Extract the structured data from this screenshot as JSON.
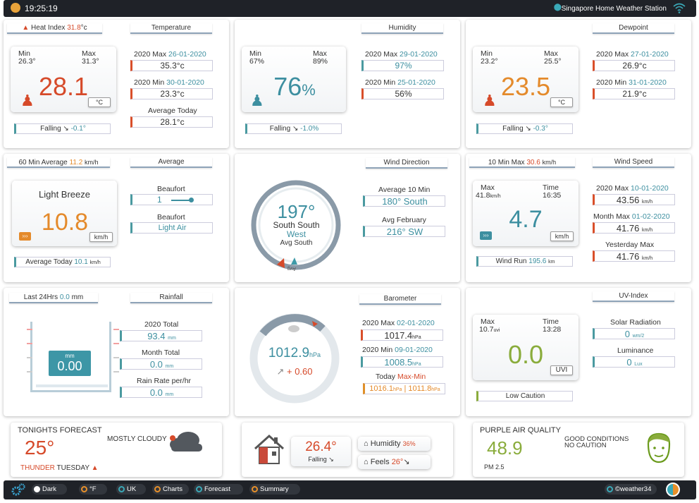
{
  "header": {
    "time": "19:25:19",
    "station": "Singapore Home Weather Station"
  },
  "temperature": {
    "heat_index_label": "Heat Index",
    "heat_index_value": "31.8",
    "heat_index_unit": "°c",
    "tab": "Temperature",
    "min_label": "Min",
    "min_value": "26.3°",
    "max_label": "Max",
    "max_value": "31.3°",
    "current": "28.1",
    "unit": "°C",
    "trend_label": "Falling",
    "trend_value": "-0.1°",
    "year_max_label": "2020 Max",
    "year_max_date": "26-01-2020",
    "year_max_value": "35.3°c",
    "year_min_label": "2020 Min",
    "year_min_date": "30-01-2020",
    "year_min_value": "23.3°c",
    "avg_today_label": "Average Today",
    "avg_today_value": "28.1°c"
  },
  "humidity": {
    "tab": "Humidity",
    "min_label": "Min",
    "min_value": "67%",
    "max_label": "Max",
    "max_value": "89%",
    "current": "76",
    "pct": "%",
    "trend_label": "Falling",
    "trend_value": "-1.0%",
    "year_max_label": "2020 Max",
    "year_max_date": "29-01-2020",
    "year_max_value": "97%",
    "year_min_label": "2020 Min",
    "year_min_date": "25-01-2020",
    "year_min_value": "56%"
  },
  "dewpoint": {
    "tab": "Dewpoint",
    "min_label": "Min",
    "min_value": "23.2°",
    "max_label": "Max",
    "max_value": "25.5°",
    "current": "23.5",
    "unit": "°C",
    "trend_label": "Falling",
    "trend_value": "-0.3°",
    "year_max_label": "2020 Max",
    "year_max_date": "27-01-2020",
    "year_max_value": "26.9°c",
    "year_min_label": "2020 Min",
    "year_min_date": "31-01-2020",
    "year_min_value": "21.9°c"
  },
  "wind_avg": {
    "tab_label": "60 Min Average",
    "tab_value": "11.2",
    "tab_unit": "km/h",
    "tab": "Average",
    "desc": "Light Breeze",
    "current": "10.8",
    "unit": "km/h",
    "beaufort_label": "Beaufort",
    "beaufort_value": "1",
    "beaufort2_label": "Beaufort",
    "beaufort2_value": "Light Air",
    "avg_today_label": "Average Today",
    "avg_today_value": "10.1",
    "avg_today_unit": "km/h"
  },
  "wind_dir": {
    "tab": "Wind Direction",
    "degrees": "197°",
    "name": "South South",
    "name2": "West",
    "avg_label": "Avg South",
    "avg_marker": "Avg",
    "avg10_label": "Average 10 Min",
    "avg10_value": "180°  South",
    "avg_month_label": "Avg February",
    "avg_month_value": "216°  SW"
  },
  "wind_speed": {
    "tab_label": "10 Min Max",
    "tab_value": "30.6",
    "tab_unit": "km/h",
    "tab": "Wind Speed",
    "max_label": "Max",
    "max_value": "41.8",
    "max_unit": "km/h",
    "time_label": "Time",
    "time_value": "16:35",
    "current": "4.7",
    "unit": "km/h",
    "run_label": "Wind Run",
    "run_value": "195.6",
    "run_unit": "km",
    "year_max_label": "2020 Max",
    "year_max_date": "10-01-2020",
    "year_max_value": "43.56",
    "month_max_label": "Month Max",
    "month_max_date": "01-02-2020",
    "month_max_value": "41.76",
    "yesterday_label": "Yesterday Max",
    "yesterday_value": "41.76",
    "speed_unit": "km/h"
  },
  "rain": {
    "tab_label": "Last 24Hrs",
    "tab_value": "0.0",
    "tab_unit": "mm",
    "tab": "Rainfall",
    "gauge_unit": "mm",
    "gauge_value": "0.00",
    "year_label": "2020 Total",
    "year_value": "93.4",
    "month_label": "Month Total",
    "month_value": "0.0",
    "rate_label": "Rain Rate per/hr",
    "rate_value": "0.0",
    "unit": "mm"
  },
  "barometer": {
    "tab": "Barometer",
    "value": "1012.9",
    "unit": "hPa",
    "trend": "+ 0.60",
    "year_max_label": "2020 Max",
    "year_max_date": "02-01-2020",
    "year_max_value": "1017.4",
    "year_min_label": "2020 Min",
    "year_min_date": "09-01-2020",
    "year_min_value": "1008.5",
    "today_label": "Today",
    "today_maxmin": "Max-Min",
    "today_max": "1016.1",
    "today_min": "1011.8"
  },
  "uv": {
    "tab": "UV-Index",
    "max_label": "Max",
    "max_value": "10.7",
    "max_unit": "uvi",
    "time_label": "Time",
    "time_value": "13:28",
    "current": "0.0",
    "unit": "UVI",
    "caution": "Low Caution",
    "solar_label": "Solar Radiation",
    "solar_value": "0",
    "solar_unit": "wm/2",
    "lum_label": "Luminance",
    "lum_value": "0",
    "lum_unit": "Lux"
  },
  "forecast": {
    "title": "TONIGHTS FORECAST",
    "temp": "25°",
    "desc": "MOSTLY CLOUDY",
    "thunder": "THUNDER",
    "day": "TUESDAY"
  },
  "indoor": {
    "temp": "26.4°",
    "trend": "Falling",
    "hum_label": "Humidity",
    "hum_value": "36%",
    "feels_label": "Feels",
    "feels_value": "26°"
  },
  "air": {
    "title": "PURPLE AIR QUALITY",
    "value": "48.9",
    "sub": "PM 2.5",
    "cond1": "GOOD CONDITIONS",
    "cond2": "NO CAUTION"
  },
  "footer": {
    "dark": "Dark",
    "f": "°F",
    "uk": "UK",
    "charts": "Charts",
    "forecast": "Forecast",
    "summary": "Summary",
    "credit": "©weather34"
  },
  "colors": {
    "red": "#d64a2a",
    "teal": "#3d8fa0",
    "orange": "#e48a2b",
    "green": "#8aac3c",
    "dark": "#1f2228"
  }
}
